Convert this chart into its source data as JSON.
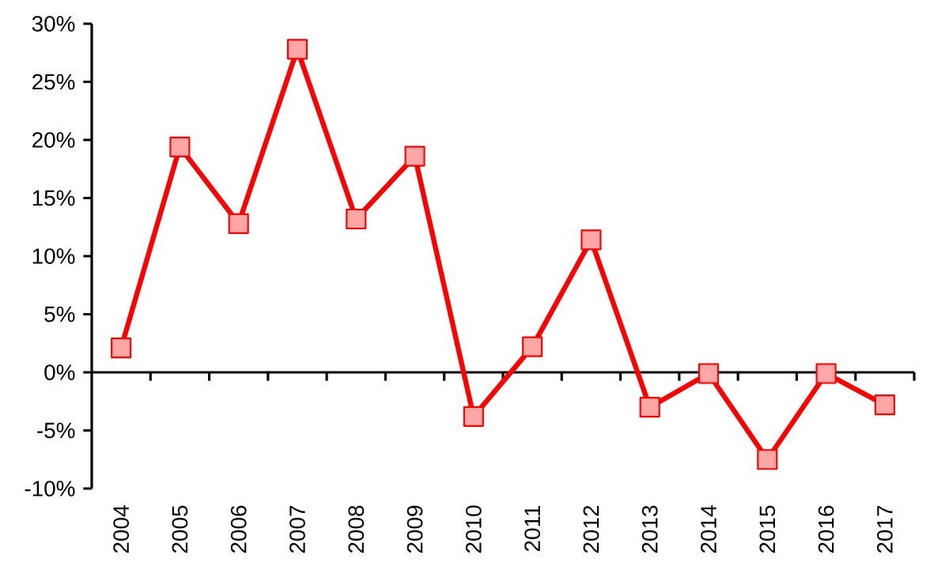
{
  "chart_data": {
    "type": "line",
    "categories": [
      "2004",
      "2005",
      "2006",
      "2007",
      "2008",
      "2009",
      "2010",
      "2011",
      "2012",
      "2013",
      "2014",
      "2015",
      "2016",
      "2017"
    ],
    "values": [
      2.1,
      19.4,
      12.8,
      27.8,
      13.2,
      18.6,
      -3.8,
      2.2,
      11.4,
      -3.0,
      -0.1,
      -7.5,
      -0.1,
      -2.8
    ],
    "color": "#ff0000",
    "marker": "square",
    "line_style": "solid",
    "ylim": [
      -10,
      30
    ],
    "yticks": [
      {
        "value": -10,
        "label": "-10%"
      },
      {
        "value": -5,
        "label": "-5%"
      },
      {
        "value": 0,
        "label": "0%"
      },
      {
        "value": 5,
        "label": "5%"
      },
      {
        "value": 10,
        "label": "10%"
      },
      {
        "value": 15,
        "label": "15%"
      },
      {
        "value": 20,
        "label": "20%"
      },
      {
        "value": 25,
        "label": "25%"
      },
      {
        "value": 30,
        "label": "30%"
      }
    ]
  }
}
